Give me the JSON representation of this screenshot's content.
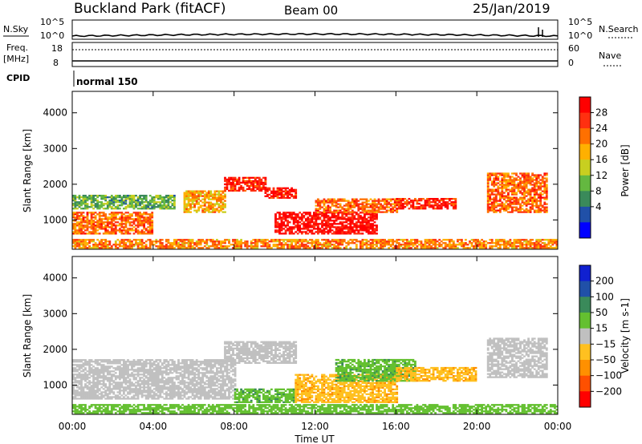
{
  "header": {
    "title": "Buckland Park (fitACF)",
    "beam": "Beam 00",
    "date": "25/Jan/2019"
  },
  "noise": {
    "left_label": "N.Sky",
    "right_label": "N.Search",
    "left_ticks": [
      "10^5",
      "10^0"
    ],
    "right_ticks": [
      "10^5",
      "10^0"
    ]
  },
  "freq": {
    "left_label_1": "Freq.",
    "left_label_2": "[MHz]",
    "left_ticks": [
      "18",
      "8"
    ],
    "right_label": "Nave",
    "right_ticks": [
      "60",
      "0"
    ]
  },
  "cpid": {
    "label": "CPID",
    "value": "normal 150"
  },
  "x_axis": {
    "label": "Time UT",
    "ticks": [
      "00:00",
      "04:00",
      "08:00",
      "12:00",
      "16:00",
      "20:00",
      "00:00"
    ]
  },
  "chart_data": [
    {
      "type": "heatmap",
      "parameter": "Power",
      "ylabel": "Slant Range [km]",
      "xlabel": "Time UT",
      "colorbar_label": "Power [dB]",
      "x_range_hours": [
        0,
        24
      ],
      "ylim": [
        180,
        4600
      ],
      "yticks": [
        "1000",
        "2000",
        "3000",
        "4000"
      ],
      "colorbar_ticks": [
        "4",
        "8",
        "12",
        "16",
        "20",
        "24",
        "28"
      ],
      "colorbar_colors": [
        "#0000ff",
        "#2050a8",
        "#3a8a5a",
        "#64b840",
        "#c8cf20",
        "#ffb000",
        "#ff7000",
        "#ff3010",
        "#ff0000"
      ],
      "regions": [
        {
          "t": [
            0.0,
            24.0
          ],
          "range": [
            200,
            450
          ],
          "value_db": 22,
          "note": "ground-near echoes"
        },
        {
          "t": [
            0.0,
            4.0
          ],
          "range": [
            600,
            1200
          ],
          "value_db": 24
        },
        {
          "t": [
            0.0,
            5.0
          ],
          "range": [
            1300,
            1700
          ],
          "value_db": 12
        },
        {
          "t": [
            5.5,
            7.5
          ],
          "range": [
            1200,
            1800
          ],
          "value_db": 20
        },
        {
          "t": [
            7.5,
            9.5
          ],
          "range": [
            1800,
            2200
          ],
          "value_db": 28
        },
        {
          "t": [
            9.5,
            11.0
          ],
          "range": [
            1600,
            1900
          ],
          "value_db": 28
        },
        {
          "t": [
            10.0,
            15.0
          ],
          "range": [
            600,
            1200
          ],
          "value_db": 30
        },
        {
          "t": [
            12.0,
            16.0
          ],
          "range": [
            1200,
            1600
          ],
          "value_db": 24
        },
        {
          "t": [
            16.0,
            19.0
          ],
          "range": [
            1300,
            1600
          ],
          "value_db": 28
        },
        {
          "t": [
            20.5,
            23.5
          ],
          "range": [
            1200,
            2300
          ],
          "value_db": 24
        }
      ]
    },
    {
      "type": "heatmap",
      "parameter": "Velocity",
      "ylabel": "Slant Range [km]",
      "xlabel": "Time UT",
      "colorbar_label": "Velocity [m s-1]",
      "x_range_hours": [
        0,
        24
      ],
      "ylim": [
        180,
        4600
      ],
      "yticks": [
        "1000",
        "2000",
        "3000",
        "4000"
      ],
      "colorbar_ticks": [
        "200",
        "100",
        "50",
        "15",
        "-15",
        "-50",
        "-100",
        "-200"
      ],
      "colorbar_colors": [
        "#1020d0",
        "#2050a8",
        "#3a8a5a",
        "#64c030",
        "#c0c0c0",
        "#ffc020",
        "#ff9000",
        "#ff5000",
        "#ff0000"
      ],
      "regions": [
        {
          "t": [
            0.0,
            24.0
          ],
          "range": [
            200,
            450
          ],
          "value_ms": 30
        },
        {
          "t": [
            0.0,
            8.0
          ],
          "range": [
            600,
            1700
          ],
          "value_ms": 0
        },
        {
          "t": [
            7.5,
            11.0
          ],
          "range": [
            1600,
            2200
          ],
          "value_ms": 0
        },
        {
          "t": [
            8.0,
            11.0
          ],
          "range": [
            500,
            900
          ],
          "value_ms": 40
        },
        {
          "t": [
            11.0,
            16.0
          ],
          "range": [
            500,
            1300
          ],
          "value_ms": -40
        },
        {
          "t": [
            13.0,
            17.0
          ],
          "range": [
            1100,
            1700
          ],
          "value_ms": 40
        },
        {
          "t": [
            16.0,
            20.0
          ],
          "range": [
            1100,
            1500
          ],
          "value_ms": -40
        },
        {
          "t": [
            20.5,
            23.5
          ],
          "range": [
            1200,
            2300
          ],
          "value_ms": 0
        }
      ]
    }
  ]
}
